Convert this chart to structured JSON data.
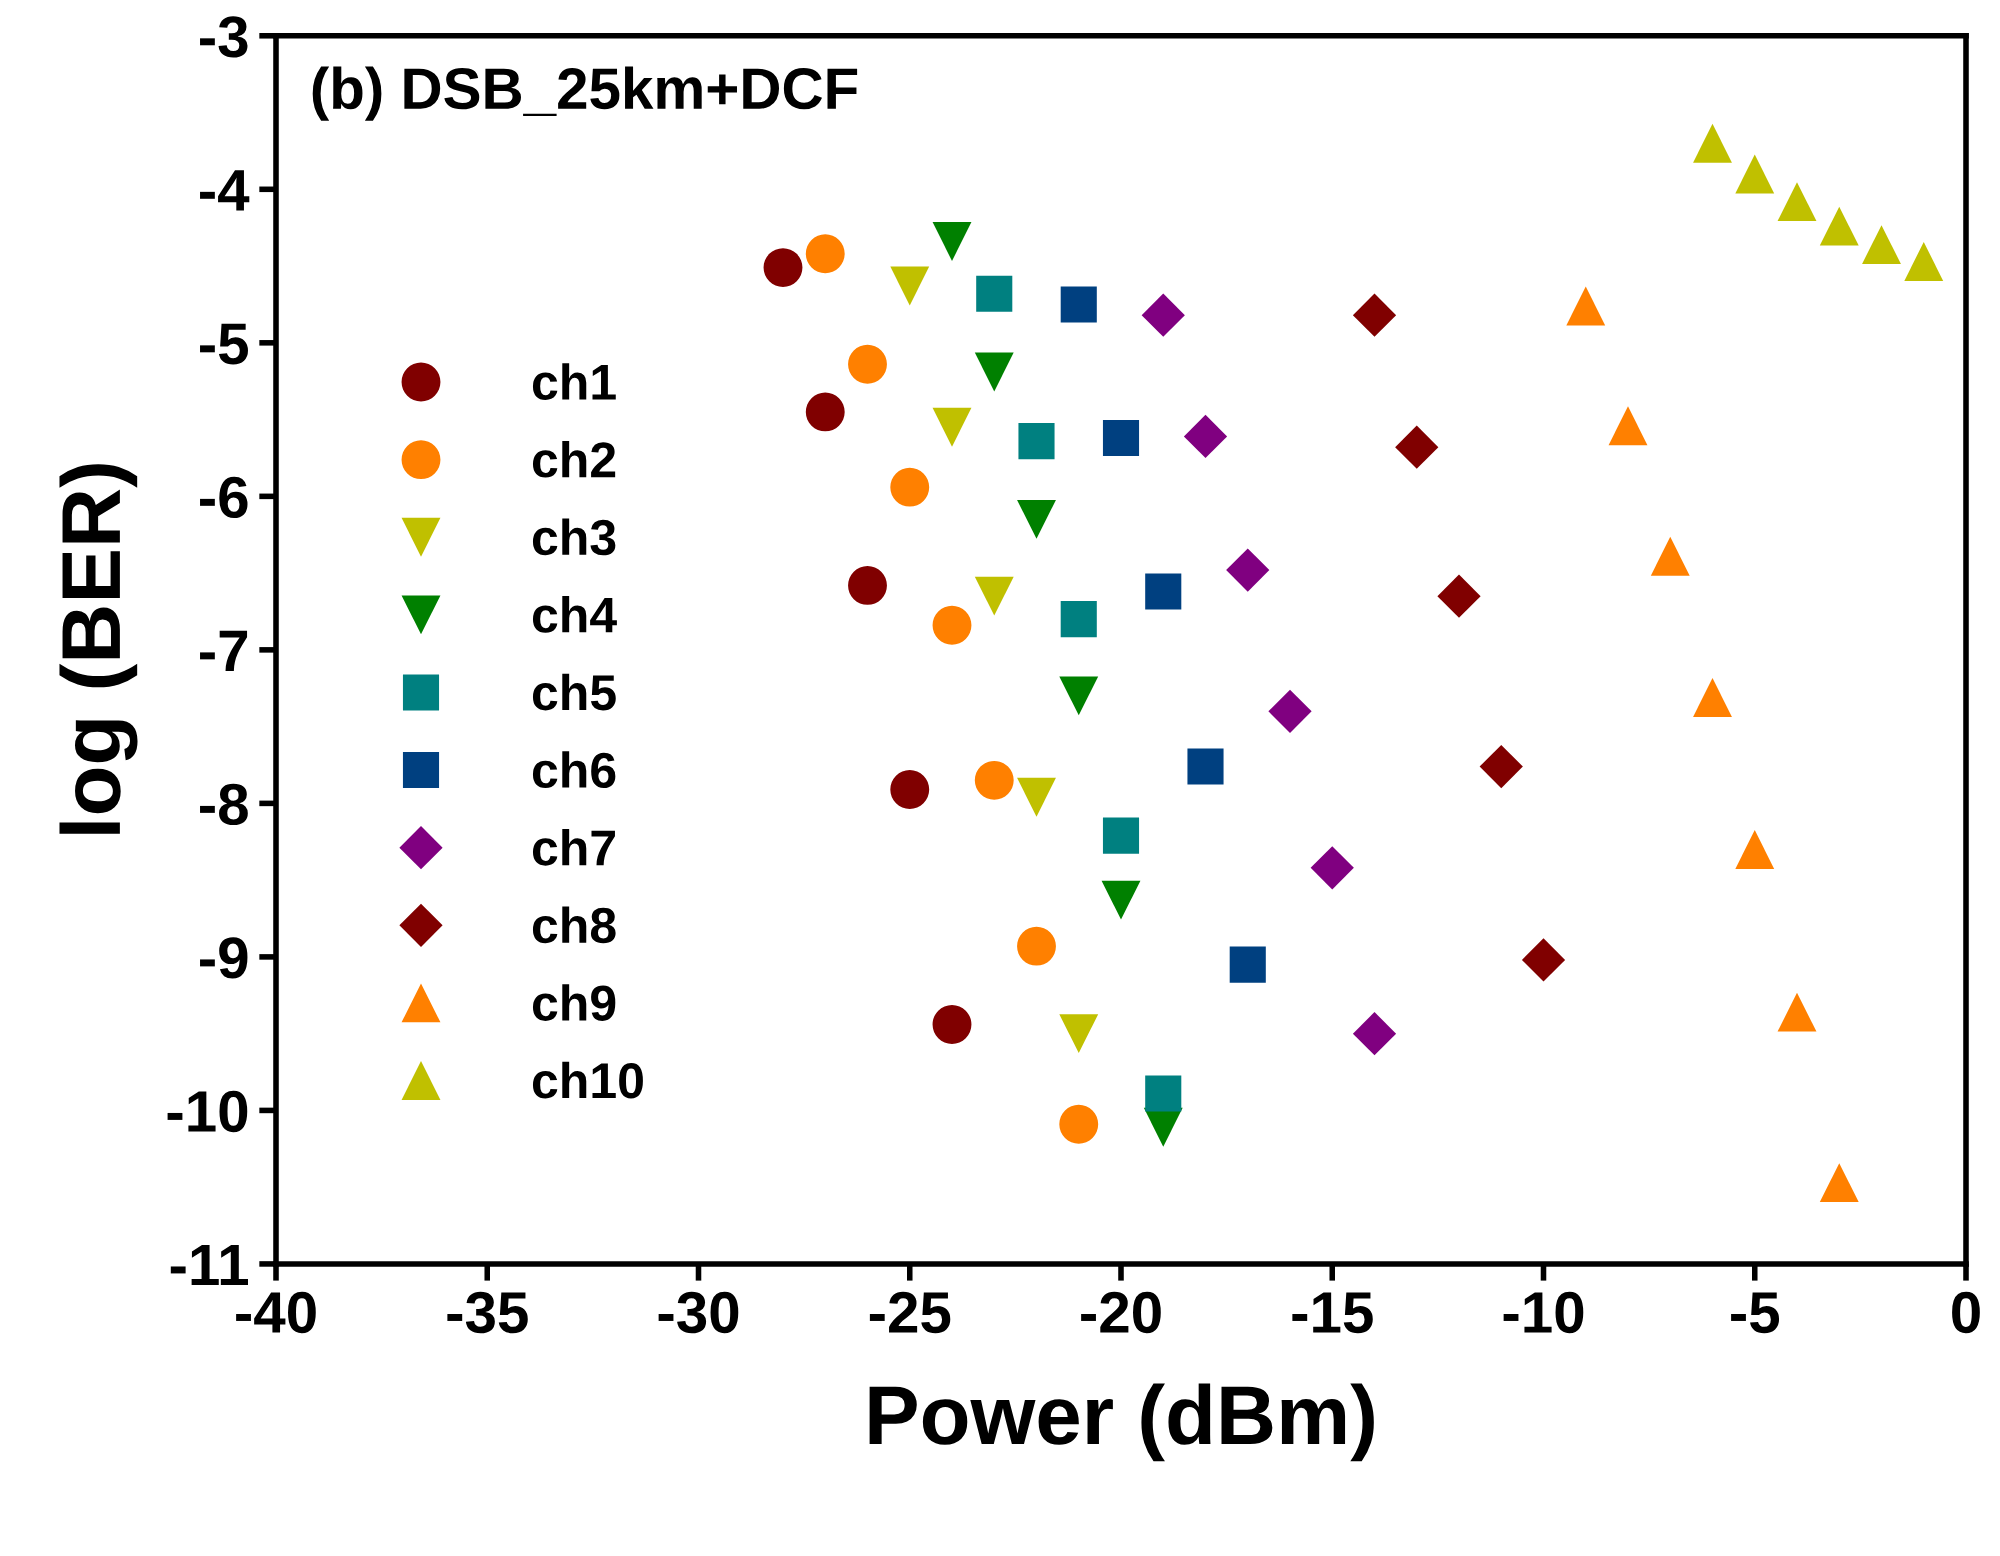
{
  "chart_data": {
    "type": "scatter",
    "title": "(b) DSB_25km+DCF",
    "xlabel": "Power (dBm)",
    "ylabel": "log (BER)",
    "xlim": [
      -40,
      0
    ],
    "xticks": [
      -40,
      -35,
      -30,
      -25,
      -20,
      -15,
      -10,
      -5,
      0
    ],
    "ylim": [
      -11,
      -3
    ],
    "yticks": [
      -11,
      -10,
      -9,
      -8,
      -7,
      -6,
      -5,
      -4,
      -3
    ],
    "grid": false,
    "legend": "left",
    "series": [
      {
        "name": "ch1",
        "color": "#800000",
        "marker": "circle",
        "x": [
          -28,
          -27,
          -26,
          -25,
          -24
        ],
        "values": [
          -4.51,
          -5.45,
          -6.58,
          -7.91,
          -9.44
        ]
      },
      {
        "name": "ch2",
        "color": "#ff8000",
        "marker": "circle",
        "x": [
          -27,
          -26,
          -25,
          -24,
          -23,
          -22,
          -21
        ],
        "values": [
          -4.42,
          -5.14,
          -5.94,
          -6.84,
          -7.85,
          -8.93,
          -10.09
        ]
      },
      {
        "name": "ch3",
        "color": "#c0c000",
        "marker": "triangle_down",
        "x": [
          -25,
          -24,
          -23,
          -22,
          -21
        ],
        "values": [
          -4.63,
          -5.55,
          -6.65,
          -7.96,
          -9.5
        ]
      },
      {
        "name": "ch4",
        "color": "#008000",
        "marker": "triangle_down",
        "x": [
          -24,
          -23,
          -22,
          -21,
          -20,
          -19
        ],
        "values": [
          -4.34,
          -5.19,
          -6.15,
          -7.3,
          -8.63,
          -10.11
        ]
      },
      {
        "name": "ch5",
        "color": "#008080",
        "marker": "square",
        "x": [
          -23,
          -22,
          -21,
          -20,
          -19
        ],
        "values": [
          -4.68,
          -5.64,
          -6.8,
          -8.21,
          -9.89
        ]
      },
      {
        "name": "ch6",
        "color": "#004080",
        "marker": "square",
        "x": [
          -21,
          -20,
          -19,
          -18,
          -17
        ],
        "values": [
          -4.75,
          -5.62,
          -6.62,
          -7.76,
          -9.05
        ]
      },
      {
        "name": "ch7",
        "color": "#800080",
        "marker": "diamond",
        "x": [
          -19,
          -18,
          -17,
          -16,
          -15,
          -14
        ],
        "values": [
          -4.82,
          -5.61,
          -6.48,
          -7.4,
          -8.42,
          -9.5
        ]
      },
      {
        "name": "ch8",
        "color": "#800000",
        "marker": "diamond",
        "x": [
          -14,
          -13,
          -12,
          -11,
          -10
        ],
        "values": [
          -4.82,
          -5.68,
          -6.65,
          -7.76,
          -9.02
        ]
      },
      {
        "name": "ch9",
        "color": "#ff8000",
        "marker": "triangle",
        "x": [
          -9,
          -8,
          -7,
          -6,
          -5,
          -4,
          -3
        ],
        "values": [
          -4.76,
          -5.54,
          -6.39,
          -7.31,
          -8.3,
          -9.36,
          -10.47
        ]
      },
      {
        "name": "ch10",
        "color": "#c0c000",
        "marker": "triangle",
        "x": [
          -6,
          -5,
          -4,
          -3,
          -2,
          -1
        ],
        "values": [
          -3.7,
          -3.9,
          -4.08,
          -4.24,
          -4.36,
          -4.47
        ]
      }
    ]
  }
}
